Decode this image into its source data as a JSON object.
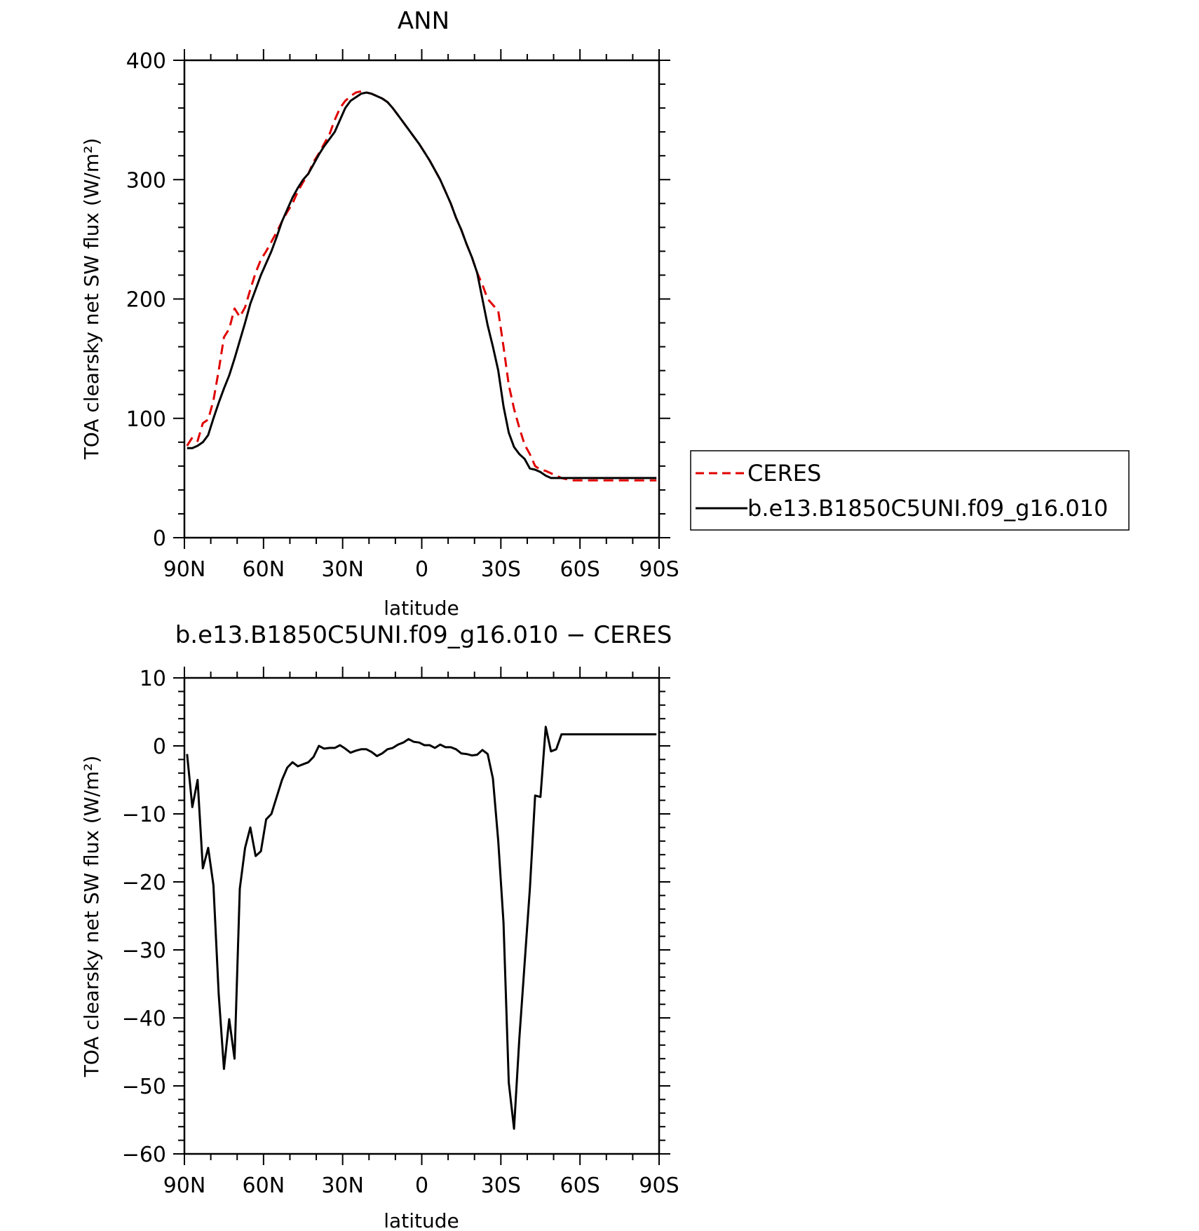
{
  "x_tick_labels": [
    "90N",
    "60N",
    "30N",
    "0",
    "30S",
    "60S",
    "90S"
  ],
  "x_tick_values": [
    90,
    60,
    30,
    0,
    -30,
    -60,
    -90
  ],
  "chart_data": [
    {
      "type": "line",
      "title": "ANN",
      "xlabel": "latitude",
      "ylabel": "TOA clearsky net SW flux (W/m²)",
      "xlim": [
        90,
        -90
      ],
      "ylim": [
        0,
        400
      ],
      "yticks": [
        0,
        100,
        200,
        300,
        400
      ],
      "grid": false,
      "legend_position": "right",
      "series": [
        {
          "name": "CERES",
          "color": "#e00000",
          "dash": "dashed",
          "x": [
            89,
            87,
            85,
            83,
            81,
            79,
            77,
            75,
            73,
            71,
            69,
            67,
            65,
            63,
            61,
            59,
            57,
            55,
            53,
            51,
            49,
            47,
            45,
            43,
            41,
            39,
            37,
            35,
            33,
            31,
            29,
            27,
            25,
            23,
            21,
            19,
            17,
            15,
            13,
            11,
            9,
            7,
            5,
            3,
            1,
            -1,
            -3,
            -5,
            -7,
            -9,
            -11,
            -13,
            -15,
            -17,
            -19,
            -21,
            -23,
            -25,
            -27,
            -29,
            -31,
            -33,
            -35,
            -37,
            -39,
            -41,
            -43,
            -45,
            -47,
            -49,
            -51,
            -53,
            -55,
            -57,
            -59,
            -61,
            -63,
            -65,
            -67,
            -69,
            -71,
            -73,
            -75,
            -77,
            -79,
            -81,
            -83,
            -85,
            -87,
            -89
          ],
          "y": [
            77,
            84,
            81,
            96,
            99,
            115,
            140,
            168,
            175,
            192,
            185,
            193,
            208,
            222,
            233,
            240,
            248,
            256,
            265,
            273,
            280,
            290,
            298,
            305,
            315,
            322,
            330,
            338,
            350,
            360,
            366,
            370,
            373,
            374,
            373,
            372,
            370,
            368,
            365,
            360,
            354,
            348,
            342,
            336,
            330,
            323,
            316,
            308,
            300,
            290,
            280,
            268,
            258,
            246,
            235,
            222,
            212,
            200,
            195,
            190,
            160,
            128,
            108,
            92,
            78,
            70,
            60,
            57,
            56,
            54,
            52,
            50,
            49,
            48,
            48,
            48,
            48,
            48,
            48,
            48,
            48,
            48,
            48,
            48,
            48,
            48,
            48,
            48,
            48,
            48
          ],
          "y_note": ""
        },
        {
          "name": "b.e13.B1850C5UNI.f09_g16.010",
          "color": "#000000",
          "dash": "solid",
          "x": [
            89,
            87,
            85,
            83,
            81,
            79,
            77,
            75,
            73,
            71,
            69,
            67,
            65,
            63,
            61,
            59,
            57,
            55,
            53,
            51,
            49,
            47,
            45,
            43,
            41,
            39,
            37,
            35,
            33,
            31,
            29,
            27,
            25,
            23,
            21,
            19,
            17,
            15,
            13,
            11,
            9,
            7,
            5,
            3,
            1,
            -1,
            -3,
            -5,
            -7,
            -9,
            -11,
            -13,
            -15,
            -17,
            -19,
            -21,
            -23,
            -25,
            -27,
            -29,
            -31,
            -33,
            -35,
            -37,
            -39,
            -41,
            -43,
            -45,
            -47,
            -49,
            -51,
            -53,
            -55,
            -57,
            -59,
            -61,
            -63,
            -65,
            -67,
            -69,
            -71,
            -73,
            -75,
            -77,
            -79,
            -81,
            -83,
            -85,
            -87,
            -89
          ],
          "y": [
            75,
            75,
            77,
            80,
            86,
            100,
            113,
            125,
            136,
            150,
            165,
            180,
            196,
            208,
            220,
            230,
            240,
            252,
            265,
            275,
            285,
            293,
            300,
            305,
            313,
            321,
            328,
            334,
            340,
            350,
            360,
            366,
            369,
            372,
            373,
            372,
            370,
            368,
            365,
            360,
            354,
            348,
            342,
            336,
            330,
            323,
            316,
            308,
            300,
            290,
            280,
            268,
            258,
            246,
            235,
            222,
            200,
            178,
            160,
            140,
            110,
            88,
            76,
            70,
            66,
            58,
            57,
            55,
            52,
            50,
            50,
            50,
            50,
            50,
            50,
            50,
            50,
            50,
            50,
            50,
            50,
            50,
            50,
            50,
            50,
            50,
            50,
            50,
            50,
            50
          ]
        }
      ]
    },
    {
      "type": "line",
      "title": "b.e13.B1850C5UNI.f09_g16.010 − CERES",
      "xlabel": "latitude",
      "ylabel": "TOA clearsky net SW flux (W/m²)",
      "xlim": [
        90,
        -90
      ],
      "ylim": [
        -60,
        10
      ],
      "yticks": [
        -60,
        -50,
        -40,
        -30,
        -20,
        -10,
        0,
        10
      ],
      "ytick_labels": [
        "−60",
        "−50",
        "−40",
        "−30",
        "−20",
        "−10",
        "0",
        "10"
      ],
      "grid": false,
      "series": [
        {
          "color": "#000000",
          "dash": "solid",
          "x": [
            89,
            87,
            85,
            83,
            81,
            79,
            77,
            75,
            73,
            71,
            69,
            67,
            65,
            63,
            61,
            59,
            57,
            55,
            53,
            51,
            49,
            47,
            45,
            43,
            41,
            39,
            37,
            35,
            33,
            31,
            29,
            27,
            25,
            23,
            21,
            19,
            17,
            15,
            13,
            11,
            9,
            7,
            5,
            3,
            1,
            -1,
            -3,
            -5,
            -7,
            -9,
            -11,
            -13,
            -15,
            -17,
            -19,
            -21,
            -23,
            -25,
            -27,
            -29,
            -31,
            -33,
            -35,
            -37,
            -39,
            -41,
            -43,
            -45,
            -47,
            -49,
            -51,
            -53,
            -55,
            -57,
            -59,
            -61,
            -63,
            -65,
            -67,
            -69,
            -71,
            -73,
            -75,
            -77,
            -79,
            -81,
            -83,
            -85,
            -87,
            -89
          ],
          "y": [
            -1.2,
            -9,
            -5,
            -18,
            -15,
            -20.5,
            -36.5,
            -47.5,
            -40.2,
            -46,
            -21,
            -15,
            -12,
            -16.2,
            -15.5,
            -10.8,
            -10,
            -7.5,
            -5,
            -3.2,
            -2.4,
            -3,
            -2.7,
            -2.4,
            -1.6,
            0,
            -0.4,
            -0.3,
            -0.3,
            0.1,
            -0.4,
            -1,
            -0.7,
            -0.5,
            -0.5,
            -0.9,
            -1.5,
            -1.1,
            -0.5,
            -0.3,
            0.2,
            0.5,
            1,
            0.6,
            0.5,
            0.1,
            0.1,
            -0.3,
            0.2,
            -0.2,
            -0.2,
            -0.5,
            -1.1,
            -1.2,
            -1.4,
            -1.3,
            -0.6,
            -1.2,
            -4.8,
            -14,
            -26,
            -49.5,
            -56.3,
            -43,
            -32,
            -21,
            -7.3,
            -7.5,
            2.8,
            -0.8,
            -0.5,
            1.7,
            1.7,
            1.7,
            1.7,
            1.7,
            1.7,
            1.7,
            1.7,
            1.7,
            1.7,
            1.7,
            1.7,
            1.7,
            1.7,
            1.7,
            1.7,
            1.7,
            1.7,
            1.7
          ]
        }
      ]
    }
  ]
}
